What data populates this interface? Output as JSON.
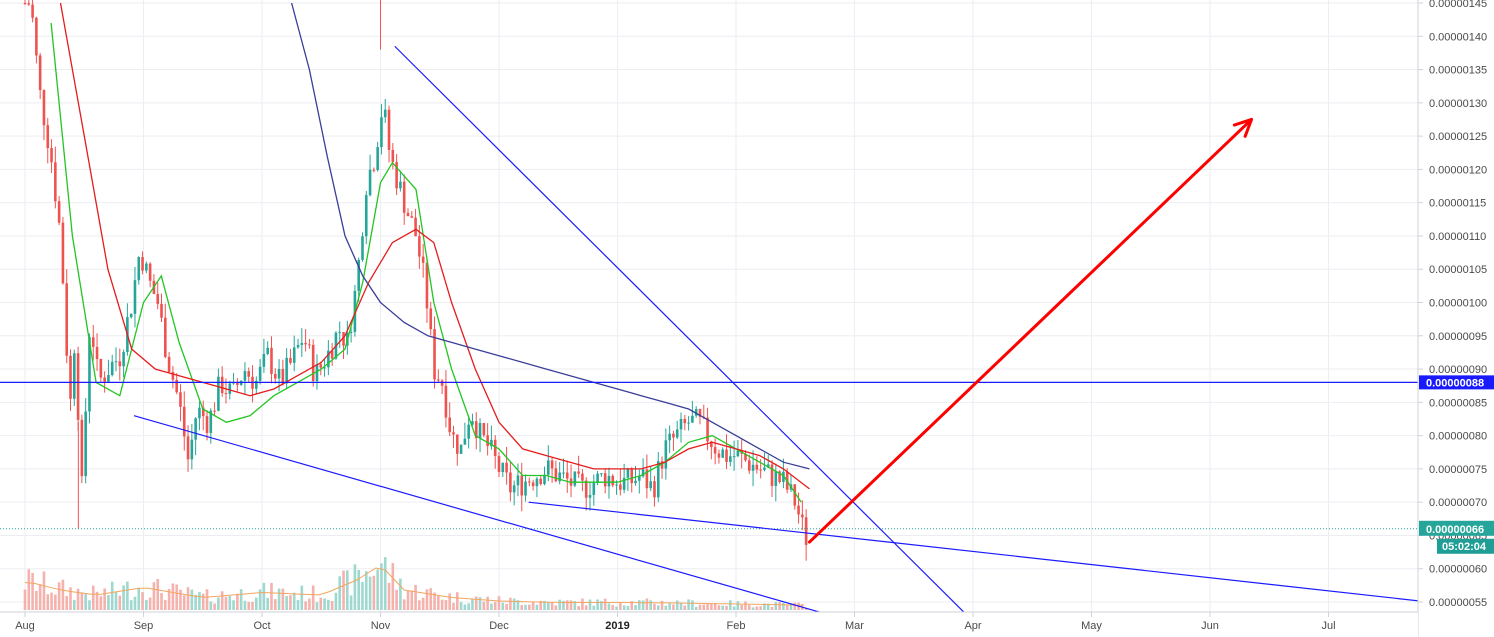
{
  "chart_data": {
    "type": "candlestick",
    "x_axis": {
      "ticks": [
        {
          "label": "Aug",
          "month": 0
        },
        {
          "label": "Sep",
          "month": 1
        },
        {
          "label": "Oct",
          "month": 2
        },
        {
          "label": "Nov",
          "month": 3
        },
        {
          "label": "Dec",
          "month": 4
        },
        {
          "label": "2019",
          "month": 5,
          "bold": true
        },
        {
          "label": "Feb",
          "month": 6
        },
        {
          "label": "Mar",
          "month": 7
        },
        {
          "label": "Apr",
          "month": 8
        },
        {
          "label": "May",
          "month": 9
        },
        {
          "label": "Jun",
          "month": 10
        },
        {
          "label": "Jul",
          "month": 11
        }
      ]
    },
    "y_axis": {
      "range": [
        5.3e-07,
        1.46e-06
      ],
      "ticks": [
        "0.00000145",
        "0.00000140",
        "0.00000135",
        "0.00000130",
        "0.00000125",
        "0.00000120",
        "0.00000115",
        "0.00000110",
        "0.00000105",
        "0.00000100",
        "0.00000095",
        "0.00000090",
        "0.00000085",
        "0.00000080",
        "0.00000075",
        "0.00000070",
        "0.00000065",
        "0.00000060",
        "0.00000055"
      ],
      "tick_values": [
        145,
        140,
        135,
        130,
        125,
        120,
        115,
        110,
        105,
        100,
        95,
        90,
        85,
        80,
        75,
        70,
        65,
        60,
        55
      ]
    },
    "price_key_points": [
      [
        0.05,
        145
      ],
      [
        0.12,
        132
      ],
      [
        0.22,
        122
      ],
      [
        0.3,
        110
      ],
      [
        0.38,
        84
      ],
      [
        0.42,
        95
      ],
      [
        0.48,
        72
      ],
      [
        0.55,
        98
      ],
      [
        0.62,
        88
      ],
      [
        0.7,
        90
      ],
      [
        0.8,
        92
      ],
      [
        0.9,
        100
      ],
      [
        0.97,
        108
      ],
      [
        1.05,
        103
      ],
      [
        1.12,
        100
      ],
      [
        1.2,
        92
      ],
      [
        1.3,
        85
      ],
      [
        1.38,
        76
      ],
      [
        1.45,
        84
      ],
      [
        1.55,
        82
      ],
      [
        1.65,
        88
      ],
      [
        1.75,
        86
      ],
      [
        1.85,
        90
      ],
      [
        1.95,
        88
      ],
      [
        2.05,
        92
      ],
      [
        2.15,
        88
      ],
      [
        2.25,
        91
      ],
      [
        2.35,
        95
      ],
      [
        2.45,
        89
      ],
      [
        2.55,
        92
      ],
      [
        2.65,
        96
      ],
      [
        2.72,
        94
      ],
      [
        2.8,
        103
      ],
      [
        2.88,
        118
      ],
      [
        2.95,
        122
      ],
      [
        3.02,
        130
      ],
      [
        3.08,
        122
      ],
      [
        3.15,
        118
      ],
      [
        3.22,
        114
      ],
      [
        3.3,
        110
      ],
      [
        3.38,
        102
      ],
      [
        3.45,
        90
      ],
      [
        3.52,
        88
      ],
      [
        3.6,
        80
      ],
      [
        3.68,
        78
      ],
      [
        3.76,
        84
      ],
      [
        3.84,
        80
      ],
      [
        3.92,
        78
      ],
      [
        4.0,
        75
      ],
      [
        4.1,
        72
      ],
      [
        4.2,
        73
      ],
      [
        4.3,
        74
      ],
      [
        4.4,
        75
      ],
      [
        4.5,
        74
      ],
      [
        4.6,
        73
      ],
      [
        4.7,
        72
      ],
      [
        4.8,
        73
      ],
      [
        4.9,
        74
      ],
      [
        5.0,
        73
      ],
      [
        5.1,
        73
      ],
      [
        5.2,
        74
      ],
      [
        5.3,
        72
      ],
      [
        5.4,
        78
      ],
      [
        5.5,
        80
      ],
      [
        5.6,
        82
      ],
      [
        5.68,
        82
      ],
      [
        5.76,
        80
      ],
      [
        5.84,
        78
      ],
      [
        5.92,
        77
      ],
      [
        6.0,
        77
      ],
      [
        6.1,
        76
      ],
      [
        6.2,
        75
      ],
      [
        6.3,
        74
      ],
      [
        6.4,
        73
      ],
      [
        6.5,
        70
      ],
      [
        6.58,
        65
      ],
      [
        6.62,
        64
      ]
    ],
    "volume_key_points": [
      [
        0.05,
        55
      ],
      [
        0.3,
        40
      ],
      [
        0.6,
        30
      ],
      [
        1.0,
        45
      ],
      [
        1.5,
        25
      ],
      [
        2.0,
        35
      ],
      [
        2.5,
        30
      ],
      [
        2.8,
        60
      ],
      [
        3.0,
        90
      ],
      [
        3.2,
        40
      ],
      [
        3.6,
        25
      ],
      [
        4.0,
        18
      ],
      [
        4.5,
        15
      ],
      [
        5.0,
        15
      ],
      [
        5.5,
        14
      ],
      [
        6.0,
        12
      ],
      [
        6.5,
        10
      ],
      [
        6.62,
        8
      ]
    ],
    "moving_averages": [
      {
        "color": "#22c522",
        "points": [
          [
            0.22,
            142
          ],
          [
            0.4,
            110
          ],
          [
            0.6,
            88
          ],
          [
            0.8,
            86
          ],
          [
            1.0,
            100
          ],
          [
            1.15,
            104
          ],
          [
            1.3,
            94
          ],
          [
            1.5,
            84
          ],
          [
            1.7,
            82
          ],
          [
            1.9,
            83
          ],
          [
            2.1,
            86
          ],
          [
            2.3,
            88
          ],
          [
            2.5,
            90
          ],
          [
            2.7,
            93
          ],
          [
            2.85,
            103
          ],
          [
            3.0,
            118
          ],
          [
            3.1,
            121
          ],
          [
            3.3,
            117
          ],
          [
            3.45,
            100
          ],
          [
            3.6,
            90
          ],
          [
            3.8,
            80
          ],
          [
            4.0,
            78
          ],
          [
            4.2,
            74
          ],
          [
            4.4,
            74
          ],
          [
            4.6,
            73
          ],
          [
            4.8,
            73
          ],
          [
            5.0,
            73
          ],
          [
            5.2,
            74
          ],
          [
            5.4,
            76
          ],
          [
            5.6,
            79
          ],
          [
            5.8,
            80
          ],
          [
            6.0,
            78
          ],
          [
            6.2,
            76
          ],
          [
            6.4,
            74
          ],
          [
            6.55,
            70
          ]
        ]
      },
      {
        "color": "#e51c1c",
        "points": [
          [
            0.3,
            145
          ],
          [
            0.5,
            125
          ],
          [
            0.7,
            105
          ],
          [
            0.9,
            93
          ],
          [
            1.1,
            90
          ],
          [
            1.3,
            89
          ],
          [
            1.5,
            88
          ],
          [
            1.7,
            87
          ],
          [
            1.9,
            86
          ],
          [
            2.1,
            87
          ],
          [
            2.3,
            89
          ],
          [
            2.5,
            91
          ],
          [
            2.7,
            95
          ],
          [
            2.9,
            103
          ],
          [
            3.1,
            109
          ],
          [
            3.3,
            111
          ],
          [
            3.45,
            109
          ],
          [
            3.6,
            100
          ],
          [
            3.8,
            90
          ],
          [
            4.0,
            82
          ],
          [
            4.2,
            78
          ],
          [
            4.4,
            77
          ],
          [
            4.6,
            76
          ],
          [
            4.8,
            75
          ],
          [
            5.0,
            75
          ],
          [
            5.2,
            75
          ],
          [
            5.4,
            76
          ],
          [
            5.6,
            78
          ],
          [
            5.8,
            79
          ],
          [
            6.0,
            78
          ],
          [
            6.2,
            77
          ],
          [
            6.4,
            75
          ],
          [
            6.62,
            72
          ]
        ]
      },
      {
        "color": "#3a3e98",
        "points": [
          [
            2.25,
            145
          ],
          [
            2.4,
            135
          ],
          [
            2.55,
            122
          ],
          [
            2.7,
            110
          ],
          [
            2.85,
            104
          ],
          [
            3.0,
            100
          ],
          [
            3.2,
            97
          ],
          [
            3.4,
            95
          ],
          [
            3.6,
            94
          ],
          [
            3.8,
            93
          ],
          [
            4.0,
            92
          ],
          [
            4.2,
            91
          ],
          [
            4.4,
            90
          ],
          [
            4.6,
            89
          ],
          [
            4.8,
            88
          ],
          [
            5.0,
            87
          ],
          [
            5.2,
            86
          ],
          [
            5.4,
            85
          ],
          [
            5.6,
            84
          ],
          [
            5.8,
            82
          ],
          [
            6.0,
            80
          ],
          [
            6.2,
            78
          ],
          [
            6.4,
            76
          ],
          [
            6.62,
            75
          ]
        ]
      }
    ],
    "horizontal_level": {
      "value": 88,
      "label": "0.00000088",
      "color": "#1a1aff"
    },
    "current_price": {
      "value": 66,
      "label": "0.00000066",
      "color": "#26a69a"
    },
    "countdown": {
      "label": "05:02:04",
      "color": "#1e9e95"
    },
    "trendlines": [
      {
        "color": "#1a1aff",
        "p1": [
          3.12,
          138.5
        ],
        "p2": [
          7.95,
          53
        ]
      },
      {
        "color": "#1a1aff",
        "p1": [
          0.92,
          83
        ],
        "p2": [
          6.8,
          53
        ]
      },
      {
        "color": "#1a1aff",
        "p1": [
          4.25,
          70
        ],
        "p2": [
          12.1,
          54.5
        ]
      }
    ],
    "arrow": {
      "color": "#ff0000",
      "from": [
        6.62,
        64
      ],
      "to": [
        10.35,
        127.5
      ]
    }
  },
  "colors": {
    "bull": "#26a69a",
    "bear": "#ef5350",
    "grid": "#eceef2",
    "background": "#ffffff",
    "axis_line": "#cfd2da"
  }
}
